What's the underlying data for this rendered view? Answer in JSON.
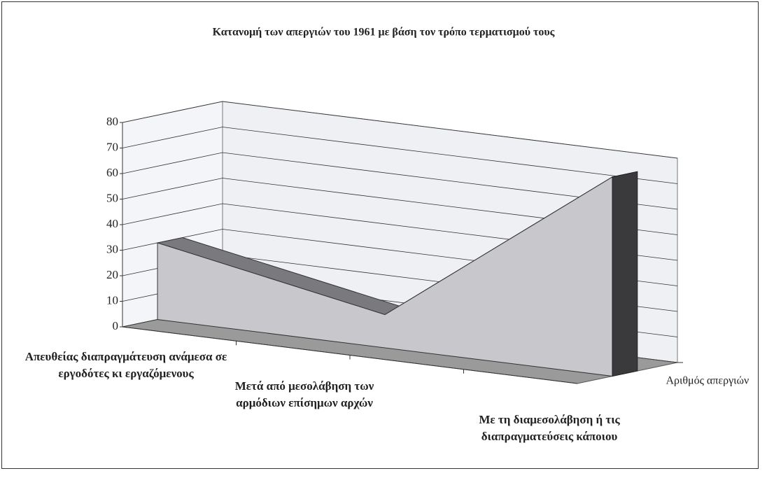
{
  "chart_data": {
    "type": "area3d",
    "title": "Κατανομή των απεργιών του 1961 με βάση τον τρόπο τερματισμού τους",
    "categories": [
      "Απευθείας διαπραγμάτευση ανάμεσα σε εργοδότες κι εργαζόμενους",
      "Μετά από μεσολάβηση των αρμόδιων επίσημων αρχών",
      "Με τη διαμεσολάβηση ή τις διαπραγματεύσεις κάποιου"
    ],
    "series": [
      {
        "name": "Αριθμός απεργιών",
        "color": "#c8c8cc",
        "values": [
          30,
          13,
          78
        ]
      }
    ],
    "ylim": [
      0,
      80
    ],
    "yticks": [
      0,
      10,
      20,
      30,
      40,
      50,
      60,
      70,
      80
    ],
    "grid": true
  }
}
